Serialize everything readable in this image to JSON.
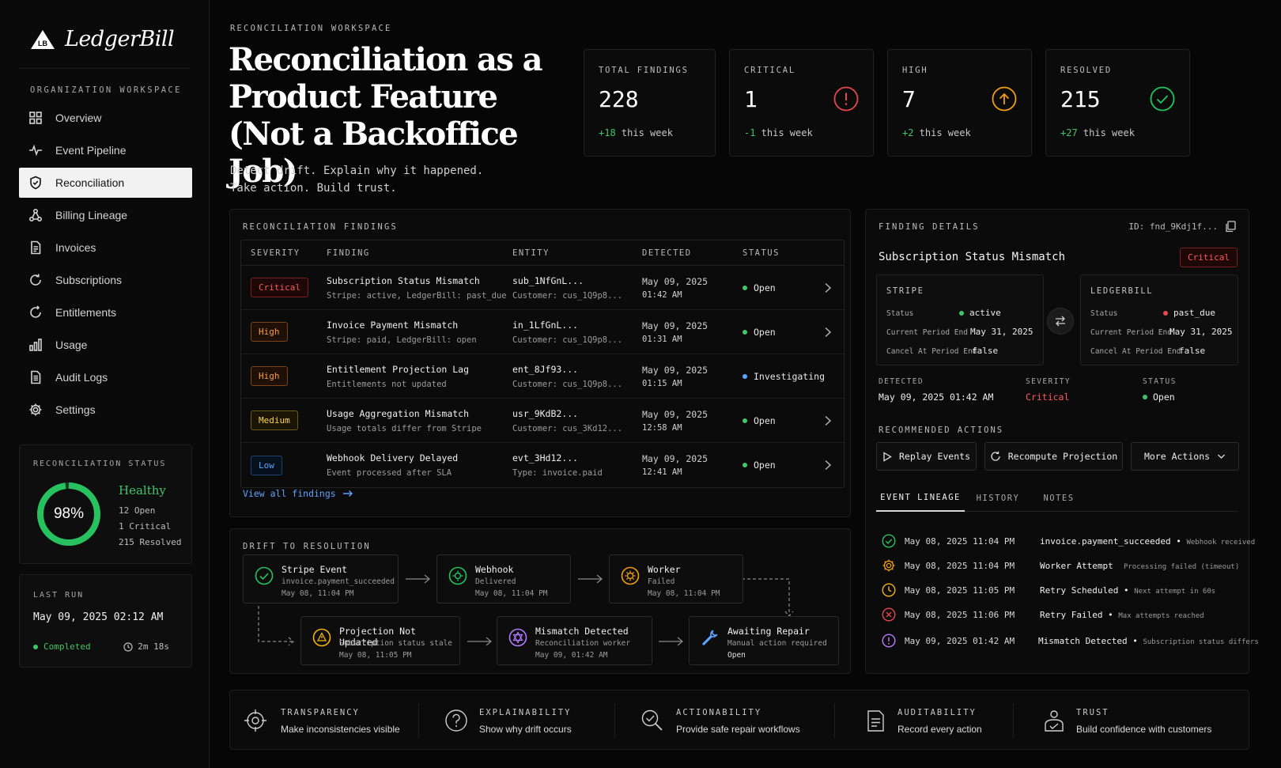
{
  "brand": {
    "name": "LedgerBill",
    "logo_mark": "LB"
  },
  "sidebar": {
    "section_label": "ORGANIZATION WORKSPACE",
    "items": [
      {
        "label": "Overview",
        "icon": "grid-icon"
      },
      {
        "label": "Event Pipeline",
        "icon": "pulse-icon"
      },
      {
        "label": "Reconciliation",
        "icon": "shield-check-icon",
        "active": true
      },
      {
        "label": "Billing Lineage",
        "icon": "lineage-icon"
      },
      {
        "label": "Invoices",
        "icon": "document-icon"
      },
      {
        "label": "Subscriptions",
        "icon": "refresh-icon"
      },
      {
        "label": "Entitlements",
        "icon": "cycle-icon"
      },
      {
        "label": "Usage",
        "icon": "bar-chart-icon"
      },
      {
        "label": "Audit Logs",
        "icon": "log-icon"
      },
      {
        "label": "Settings",
        "icon": "gear-icon"
      }
    ],
    "recon_status": {
      "label": "RECONCILIATION STATUS",
      "percent": "98%",
      "percent_value": 0.98,
      "health": "Healthy",
      "open": "12 Open",
      "critical": "1 Critical",
      "resolved": "215 Resolved"
    },
    "last_run": {
      "label": "LAST RUN",
      "date": "May 09, 2025 02:12 AM",
      "status": "Completed",
      "duration": "2m 18s"
    }
  },
  "header": {
    "eyebrow": "RECONCILIATION WORKSPACE",
    "title_line1": "Reconciliation as a",
    "title_line2": "Product Feature",
    "title_line3": "(Not a Backoffice Job)",
    "tagline_line1": "Detect drift. Explain why it happened.",
    "tagline_line2": "Take action. Build trust."
  },
  "kpis": [
    {
      "label": "TOTAL FINDINGS",
      "value": "228",
      "delta": "+18",
      "delta_suffix": " this week",
      "delta_color": "#3fc66b",
      "icon": ""
    },
    {
      "label": "CRITICAL",
      "value": "1",
      "delta": "-1",
      "delta_suffix": " this week",
      "delta_color": "#3fc66b",
      "icon": "alert-circle-icon",
      "icon_color": "#e5484d"
    },
    {
      "label": "HIGH",
      "value": "7",
      "delta": "+2",
      "delta_suffix": " this week",
      "delta_color": "#3fc66b",
      "icon": "arrow-up-circle-icon",
      "icon_color": "#f59e0b"
    },
    {
      "label": "RESOLVED",
      "value": "215",
      "delta": "+27",
      "delta_suffix": " this week",
      "delta_color": "#3fc66b",
      "icon": "check-circle-icon",
      "icon_color": "#22c55e"
    }
  ],
  "findings": {
    "title": "RECONCILIATION FINDINGS",
    "columns": [
      "SEVERITY",
      "FINDING",
      "ENTITY",
      "DETECTED",
      "STATUS"
    ],
    "rows": [
      {
        "severity": "Critical",
        "sev_class": "critical",
        "finding": "Subscription Status Mismatch",
        "finding_sub": "Stripe: active, LedgerBill: past_due",
        "entity": "sub_1NfGnL...",
        "entity_sub": "Customer: cus_1Q9p8...",
        "date": "May 09, 2025",
        "time": "01:42 AM",
        "status": "Open",
        "status_color": "#3fc66b",
        "chevron": true
      },
      {
        "severity": "High",
        "sev_class": "high",
        "finding": "Invoice Payment Mismatch",
        "finding_sub": "Stripe: paid, LedgerBill: open",
        "entity": "in_1LfGnL...",
        "entity_sub": "Customer: cus_1Q9p8...",
        "date": "May 09, 2025",
        "time": "01:31 AM",
        "status": "Open",
        "status_color": "#3fc66b",
        "chevron": true
      },
      {
        "severity": "High",
        "sev_class": "high",
        "finding": "Entitlement Projection Lag",
        "finding_sub": "Entitlements not updated",
        "entity": "ent_8Jf93...",
        "entity_sub": "Customer: cus_1Q9p8...",
        "date": "May 09, 2025",
        "time": "01:15 AM",
        "status": "Investigating",
        "status_color": "#5aa5ff",
        "chevron": false
      },
      {
        "severity": "Medium",
        "sev_class": "medium",
        "finding": "Usage Aggregation Mismatch",
        "finding_sub": "Usage totals differ from Stripe",
        "entity": "usr_9KdB2...",
        "entity_sub": "Customer: cus_3Kd12...",
        "date": "May 09, 2025",
        "time": "12:58 AM",
        "status": "Open",
        "status_color": "#3fc66b",
        "chevron": true
      },
      {
        "severity": "Low",
        "sev_class": "low",
        "finding": "Webhook Delivery Delayed",
        "finding_sub": "Event processed after SLA",
        "entity": "evt_3Hd12...",
        "entity_sub": "Type: invoice.paid",
        "date": "May 09, 2025",
        "time": "12:41 AM",
        "status": "Open",
        "status_color": "#3fc66b",
        "chevron": true
      }
    ],
    "view_all": "View all findings"
  },
  "drift": {
    "title": "DRIFT TO RESOLUTION",
    "nodes": [
      {
        "title": "Stripe Event",
        "sub": "invoice.payment_succeeded",
        "time": "May 08, 11:04 PM",
        "icon": "check-circle-icon",
        "color": "#22c55e"
      },
      {
        "title": "Webhook",
        "sub": "Delivered",
        "time": "May 08, 11:04 PM",
        "icon": "webhook-gear-icon",
        "color": "#22c55e"
      },
      {
        "title": "Worker",
        "sub": "Failed",
        "time": "May 08, 11:04 PM",
        "icon": "worker-gear-icon",
        "color": "#f59e0b"
      },
      {
        "title": "Projection Not Updated",
        "sub": "Subscription status stale",
        "time": "May 08, 11:05 PM",
        "icon": "warning-icon",
        "color": "#f5b40b"
      },
      {
        "title": "Mismatch Detected",
        "sub": "Reconciliation worker",
        "time": "May 09, 01:42 AM",
        "icon": "mismatch-icon",
        "color": "#b57cff"
      },
      {
        "title": "Awaiting Repair",
        "sub": "Manual action required",
        "time": "Open",
        "icon": "wrench-icon",
        "color": "#5aa5ff"
      }
    ]
  },
  "details": {
    "title": "FINDING DETAILS",
    "id": "ID: fnd_9Kdj1f...",
    "finding": "Subscription Status Mismatch",
    "badge": "Critical",
    "stripe": {
      "label": "STRIPE",
      "status_label": "Status",
      "status": "active",
      "status_color": "#3fc66b",
      "period_label": "Current Period End",
      "period": "May 31, 2025",
      "cancel_label": "Cancel At Period End",
      "cancel": "false"
    },
    "ledgerbill": {
      "label": "LEDGERBILL",
      "status_label": "Status",
      "status": "past_due",
      "status_color": "#e5484d",
      "period_label": "Current Period End",
      "period": "May 31, 2025",
      "cancel_label": "Cancel At Period End",
      "cancel": "false"
    },
    "meta": {
      "detected_label": "DETECTED",
      "detected": "May 09, 2025 01:42 AM",
      "severity_label": "SEVERITY",
      "severity": "Critical",
      "status_label": "STATUS",
      "status": "Open"
    },
    "actions_title": "RECOMMENDED ACTIONS",
    "actions": [
      "Replay Events",
      "Recompute Projection",
      "More Actions"
    ],
    "tabs": [
      "EVENT LINEAGE",
      "HISTORY",
      "NOTES"
    ],
    "events": [
      {
        "time": "May 08, 2025 11:04 PM",
        "name": "invoice.payment_succeeded",
        "note": "Webhook received",
        "icon": "check-circle-icon",
        "color": "#22c55e"
      },
      {
        "time": "May 08, 2025 11:04 PM",
        "name": "Worker Attempt",
        "note": "Processing failed (timeout)",
        "icon": "gear-icon",
        "color": "#f59e0b"
      },
      {
        "time": "May 08, 2025 11:05 PM",
        "name": "Retry Scheduled",
        "note": "Next attempt in 60s",
        "icon": "clock-icon",
        "color": "#f5b40b"
      },
      {
        "time": "May 08, 2025 11:06 PM",
        "name": "Retry Failed",
        "note": "Max attempts reached",
        "icon": "x-circle-icon",
        "color": "#e5484d"
      },
      {
        "time": "May 09, 2025 01:42 AM",
        "name": "Mismatch Detected",
        "note": "Subscription status differs",
        "icon": "info-circle-icon",
        "color": "#b57cff"
      }
    ]
  },
  "principles": [
    {
      "heading": "TRANSPARENCY",
      "text": "Make inconsistencies visible",
      "icon": "target-icon"
    },
    {
      "heading": "EXPLAINABILITY",
      "text": "Show why drift occurs",
      "icon": "question-icon"
    },
    {
      "heading": "ACTIONABILITY",
      "text": "Provide safe repair workflows",
      "icon": "search-check-icon"
    },
    {
      "heading": "AUDITABILITY",
      "text": "Record every action",
      "icon": "clipboard-icon"
    },
    {
      "heading": "TRUST",
      "text": "Build confidence with customers",
      "icon": "handshake-icon"
    }
  ]
}
